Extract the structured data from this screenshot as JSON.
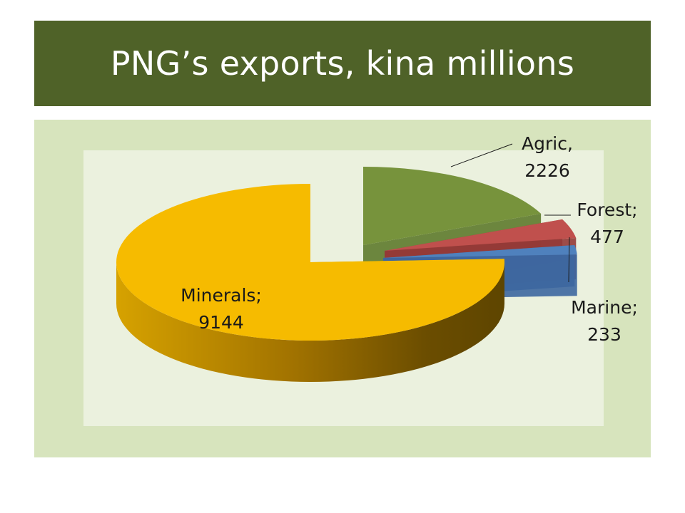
{
  "title": "PNG’s exports, kina millions",
  "chart_data": {
    "type": "pie",
    "title": "PNG’s exports, kina millions",
    "slices": [
      {
        "label": "Minerals",
        "value": 9144,
        "label_line1": "Minerals;",
        "label_line2": "9144",
        "color": "#f6bb00"
      },
      {
        "label": "Agric",
        "value": 2226,
        "label_line1": "Agric,",
        "label_line2": "2226",
        "color": "#77933c"
      },
      {
        "label": "Forest",
        "value": 477,
        "label_line1": "Forest;",
        "label_line2": "477",
        "color": "#c0504d"
      },
      {
        "label": "Marine",
        "value": 233,
        "label_line1": "Marine;",
        "label_line2": "233",
        "color": "#4f81bd"
      }
    ],
    "style": "3d-exploded",
    "legend": "none"
  }
}
